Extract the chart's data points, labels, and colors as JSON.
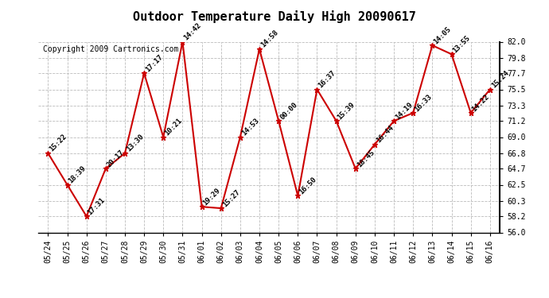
{
  "title": "Outdoor Temperature Daily High 20090617",
  "copyright": "Copyright 2009 Cartronics.com",
  "dates": [
    "05/24",
    "05/25",
    "05/26",
    "05/27",
    "05/28",
    "05/29",
    "05/30",
    "05/31",
    "06/01",
    "06/02",
    "06/03",
    "06/04",
    "06/05",
    "06/06",
    "06/07",
    "06/08",
    "06/09",
    "06/10",
    "06/11",
    "06/12",
    "06/13",
    "06/14",
    "06/15",
    "06/16"
  ],
  "temps": [
    66.8,
    62.5,
    58.2,
    64.7,
    66.8,
    77.7,
    69.0,
    82.0,
    59.5,
    59.3,
    69.0,
    81.0,
    71.2,
    61.0,
    75.5,
    71.2,
    64.7,
    68.0,
    71.2,
    72.3,
    81.5,
    80.3,
    72.3,
    75.5
  ],
  "labels": [
    "15:22",
    "18:39",
    "17:31",
    "20:17",
    "13:30",
    "17:17",
    "10:21",
    "14:42",
    "19:29",
    "15:27",
    "14:53",
    "14:58",
    "00:00",
    "16:50",
    "16:37",
    "15:39",
    "18:45",
    "16:44",
    "14:19",
    "16:33",
    "14:05",
    "13:55",
    "14:22",
    "15:24"
  ],
  "ylim": [
    56.0,
    82.0
  ],
  "yticks": [
    56.0,
    58.2,
    60.3,
    62.5,
    64.7,
    66.8,
    69.0,
    71.2,
    73.3,
    75.5,
    77.7,
    79.8,
    82.0
  ],
  "line_color": "#cc0000",
  "marker_color": "#cc0000",
  "bg_color": "#ffffff",
  "grid_color": "#bbbbbb",
  "title_fontsize": 11,
  "label_fontsize": 6.5,
  "axis_fontsize": 7,
  "copyright_fontsize": 7
}
